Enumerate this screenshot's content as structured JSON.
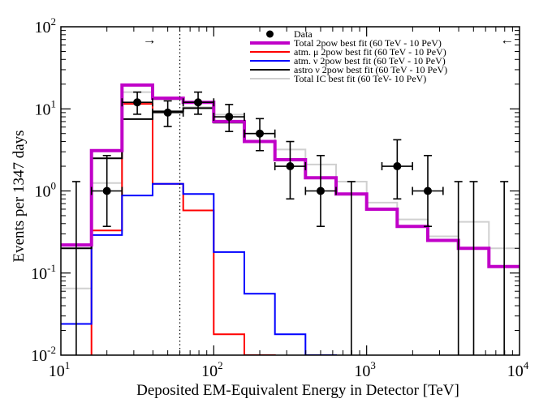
{
  "chart_data": {
    "type": "histogram-log",
    "xlabel": "Deposited EM-Equivalent Energy in Detector [TeV]",
    "ylabel": "Events per 1347 days",
    "xscale": "log",
    "yscale": "log",
    "xlim": [
      10,
      10000
    ],
    "ylim": [
      0.01,
      100
    ],
    "x_ticks": [
      {
        "base": "10",
        "exp": "1",
        "value": 10
      },
      {
        "base": "10",
        "exp": "2",
        "value": 100
      },
      {
        "base": "10",
        "exp": "3",
        "value": 1000
      },
      {
        "base": "10",
        "exp": "4",
        "value": 10000
      }
    ],
    "y_ticks": [
      {
        "base": "10",
        "exp": "-2",
        "value": 0.01
      },
      {
        "base": "10",
        "exp": "-1",
        "value": 0.1
      },
      {
        "base": "10",
        "exp": "0",
        "value": 1
      },
      {
        "base": "10",
        "exp": "1",
        "value": 10
      },
      {
        "base": "10",
        "exp": "2",
        "value": 100
      }
    ],
    "threshold_line": {
      "x": 60,
      "style": "dotted"
    },
    "annotations": [
      {
        "text": "→",
        "x": 38,
        "y": 70
      },
      {
        "text": "←",
        "x": 8300,
        "y": 70
      }
    ],
    "bin_edges": [
      10,
      15.85,
      25.12,
      39.81,
      63.1,
      100,
      158.5,
      251.2,
      398.1,
      631,
      1000,
      1585,
      2512,
      3981,
      6310,
      10000
    ],
    "series": [
      {
        "name": "Total IC best fit (60 TeV- 10 PeV)",
        "color": "#d0d0d0",
        "width": 2,
        "values": [
          0.065,
          1.25,
          16,
          13,
          10.5,
          8.5,
          5,
          3.2,
          2.1,
          1.3,
          0.72,
          0.45,
          0.28,
          0.42,
          0.2
        ]
      },
      {
        "name": "atm. μ 2pow best fit (60 TeV - 10 PeV)",
        "color": "#ff0000",
        "width": 2,
        "values": [
          0,
          0.33,
          11.5,
          1.22,
          0.58,
          0.018,
          0.01,
          0,
          0,
          0,
          0,
          0,
          0,
          0,
          0
        ]
      },
      {
        "name": "atm. ν 2pow best fit (60 TeV - 10 PeV)",
        "color": "#0000ff",
        "width": 2,
        "values": [
          0.024,
          0.29,
          0.88,
          1.22,
          0.92,
          0.18,
          0.056,
          0.018,
          0.01,
          0,
          0,
          0,
          0,
          0,
          0
        ]
      },
      {
        "name": "astro ν 2pow best fit (60 TeV - 10 PeV)",
        "color": "#000000",
        "width": 2,
        "values": [
          0.2,
          2.5,
          7.5,
          9.3,
          10.2,
          6.8,
          4,
          2.4,
          1.45,
          0.92,
          0.6,
          0.37,
          0.25,
          0.2,
          0.12
        ]
      },
      {
        "name": "Total 2pow best fit (60 TeV - 10 PeV)",
        "color": "#c000c8",
        "width": 4,
        "values": [
          0.22,
          3.1,
          19.5,
          13.5,
          12,
          7,
          4,
          2.4,
          1.45,
          0.92,
          0.6,
          0.37,
          0.25,
          0.2,
          0.12
        ]
      }
    ],
    "data_points": {
      "name": "Data",
      "points": [
        {
          "x": 20,
          "y": 1,
          "xlo": 15.85,
          "xhi": 25.12,
          "ylo": 0.37,
          "yhi": 2.7
        },
        {
          "x": 31.6,
          "y": 12,
          "xlo": 25.12,
          "xhi": 39.81,
          "ylo": 8.6,
          "yhi": 16
        },
        {
          "x": 50,
          "y": 9,
          "xlo": 39.81,
          "xhi": 63.1,
          "ylo": 6.1,
          "yhi": 12.5
        },
        {
          "x": 79,
          "y": 12,
          "xlo": 63.1,
          "xhi": 100,
          "ylo": 8.6,
          "yhi": 16
        },
        {
          "x": 126,
          "y": 8,
          "xlo": 100,
          "xhi": 158.5,
          "ylo": 5.3,
          "yhi": 11.3
        },
        {
          "x": 200,
          "y": 5,
          "xlo": 158.5,
          "xhi": 251.2,
          "ylo": 3.1,
          "yhi": 7.6
        },
        {
          "x": 316,
          "y": 2,
          "xlo": 251.2,
          "xhi": 398.1,
          "ylo": 0.8,
          "yhi": 4
        },
        {
          "x": 500,
          "y": 1,
          "xlo": 398.1,
          "xhi": 631,
          "ylo": 0.37,
          "yhi": 2.7
        },
        {
          "x": 1585,
          "y": 2,
          "xlo": 1259,
          "xhi": 1995,
          "ylo": 0.8,
          "yhi": 4.2
        },
        {
          "x": 2512,
          "y": 1,
          "xlo": 1995,
          "xhi": 3162,
          "ylo": 0.37,
          "yhi": 2.7
        }
      ],
      "upper_limits": [
        {
          "x": 12.6,
          "yhi": 1.3
        },
        {
          "x": 794,
          "yhi": 1.3
        },
        {
          "x": 3981,
          "yhi": 1.3
        },
        {
          "x": 5012,
          "yhi": 1.3
        },
        {
          "x": 7943,
          "yhi": 1.3
        }
      ]
    },
    "legend": {
      "position": "top-right",
      "entries": [
        {
          "label": "Data",
          "kind": "marker",
          "color": "#000000"
        },
        {
          "label": "Total 2pow best fit (60 TeV - 10 PeV)",
          "kind": "line",
          "color": "#c000c8",
          "width": 4
        },
        {
          "label": "atm. μ 2pow best fit (60 TeV - 10 PeV)",
          "kind": "line",
          "color": "#ff0000",
          "width": 2
        },
        {
          "label": "atm. ν 2pow best fit (60 TeV - 10 PeV)",
          "kind": "line",
          "color": "#0000ff",
          "width": 2
        },
        {
          "label": "astro ν 2pow best fit (60 TeV - 10 PeV)",
          "kind": "line",
          "color": "#000000",
          "width": 2
        },
        {
          "label": "Total IC best fit (60 TeV- 10 PeV)",
          "kind": "line",
          "color": "#d0d0d0",
          "width": 2
        }
      ]
    }
  }
}
